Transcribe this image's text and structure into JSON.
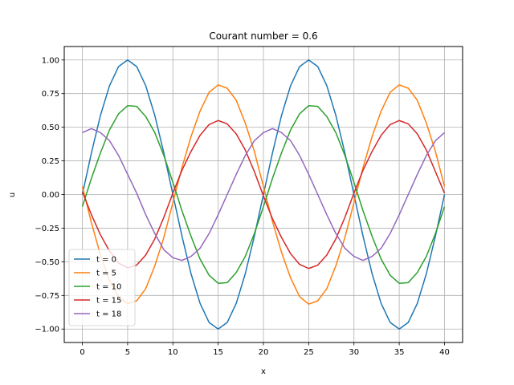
{
  "chart_data": {
    "type": "line",
    "title": "Courant number = 0.6",
    "xlabel": "x",
    "ylabel": "u",
    "xlim": [
      -2,
      42
    ],
    "ylim": [
      -1.1,
      1.1
    ],
    "xticks": [
      0,
      5,
      10,
      15,
      20,
      25,
      30,
      35,
      40
    ],
    "yticks": [
      -1.0,
      -0.75,
      -0.5,
      -0.25,
      0.0,
      0.25,
      0.5,
      0.75,
      1.0
    ],
    "xtick_labels": [
      "0",
      "5",
      "10",
      "15",
      "20",
      "25",
      "30",
      "35",
      "40"
    ],
    "ytick_labels": [
      "−1.00",
      "−0.75",
      "−0.50",
      "−0.25",
      "0.00",
      "0.25",
      "0.50",
      "0.75",
      "1.00"
    ],
    "grid": true,
    "legend_position": "lower-left",
    "x": [
      0,
      1,
      2,
      3,
      4,
      5,
      6,
      7,
      8,
      9,
      10,
      11,
      12,
      13,
      14,
      15,
      16,
      17,
      18,
      19,
      20,
      21,
      22,
      23,
      24,
      25,
      26,
      27,
      28,
      29,
      30,
      31,
      32,
      33,
      34,
      35,
      36,
      37,
      38,
      39,
      40
    ],
    "series": [
      {
        "name": "t = 0",
        "color": "#1f77b4",
        "values": [
          0.0,
          0.309,
          0.588,
          0.809,
          0.951,
          1.0,
          0.951,
          0.809,
          0.588,
          0.309,
          0.0,
          -0.309,
          -0.588,
          -0.809,
          -0.951,
          -1.0,
          -0.951,
          -0.809,
          -0.588,
          -0.309,
          0.0,
          0.309,
          0.588,
          0.809,
          0.951,
          1.0,
          0.951,
          0.809,
          0.588,
          0.309,
          0.0,
          -0.309,
          -0.588,
          -0.809,
          -0.951,
          -1.0,
          -0.951,
          -0.809,
          -0.588,
          -0.309,
          0.0
        ]
      },
      {
        "name": "t = 5",
        "color": "#ff7f0e",
        "values": [
          0.06,
          -0.21,
          -0.45,
          -0.64,
          -0.76,
          -0.81,
          -0.79,
          -0.7,
          -0.53,
          -0.32,
          -0.06,
          0.2,
          0.43,
          0.62,
          0.76,
          0.815,
          0.79,
          0.7,
          0.53,
          0.32,
          0.06,
          -0.2,
          -0.43,
          -0.62,
          -0.76,
          -0.815,
          -0.79,
          -0.7,
          -0.53,
          -0.32,
          -0.06,
          0.2,
          0.43,
          0.62,
          0.76,
          0.815,
          0.79,
          0.7,
          0.53,
          0.32,
          0.06
        ]
      },
      {
        "name": "t = 10",
        "color": "#2ca02c",
        "values": [
          -0.09,
          0.12,
          0.31,
          0.48,
          0.6,
          0.66,
          0.655,
          0.58,
          0.46,
          0.29,
          0.09,
          -0.12,
          -0.31,
          -0.48,
          -0.6,
          -0.66,
          -0.655,
          -0.58,
          -0.46,
          -0.29,
          -0.09,
          0.12,
          0.31,
          0.48,
          0.6,
          0.66,
          0.655,
          0.58,
          0.46,
          0.29,
          0.09,
          -0.12,
          -0.31,
          -0.48,
          -0.6,
          -0.66,
          -0.655,
          -0.58,
          -0.46,
          -0.29,
          -0.09
        ]
      },
      {
        "name": "t = 15",
        "color": "#d62728",
        "values": [
          0.02,
          -0.15,
          -0.3,
          -0.42,
          -0.51,
          -0.545,
          -0.525,
          -0.45,
          -0.33,
          -0.17,
          0.01,
          0.18,
          0.32,
          0.44,
          0.52,
          0.55,
          0.525,
          0.45,
          0.33,
          0.17,
          -0.01,
          -0.18,
          -0.32,
          -0.44,
          -0.52,
          -0.55,
          -0.525,
          -0.45,
          -0.33,
          -0.17,
          0.01,
          0.18,
          0.32,
          0.44,
          0.52,
          0.55,
          0.525,
          0.45,
          0.33,
          0.17,
          0.01
        ]
      },
      {
        "name": "t = 18",
        "color": "#9467bd",
        "values": [
          0.46,
          0.49,
          0.46,
          0.4,
          0.29,
          0.15,
          0.01,
          -0.15,
          -0.29,
          -0.41,
          -0.47,
          -0.49,
          -0.46,
          -0.4,
          -0.29,
          -0.15,
          0.0,
          0.15,
          0.29,
          0.4,
          0.46,
          0.49,
          0.46,
          0.4,
          0.29,
          0.15,
          0.0,
          -0.15,
          -0.29,
          -0.4,
          -0.46,
          -0.49,
          -0.46,
          -0.4,
          -0.29,
          -0.15,
          0.0,
          0.15,
          0.29,
          0.4,
          0.46
        ]
      }
    ]
  }
}
